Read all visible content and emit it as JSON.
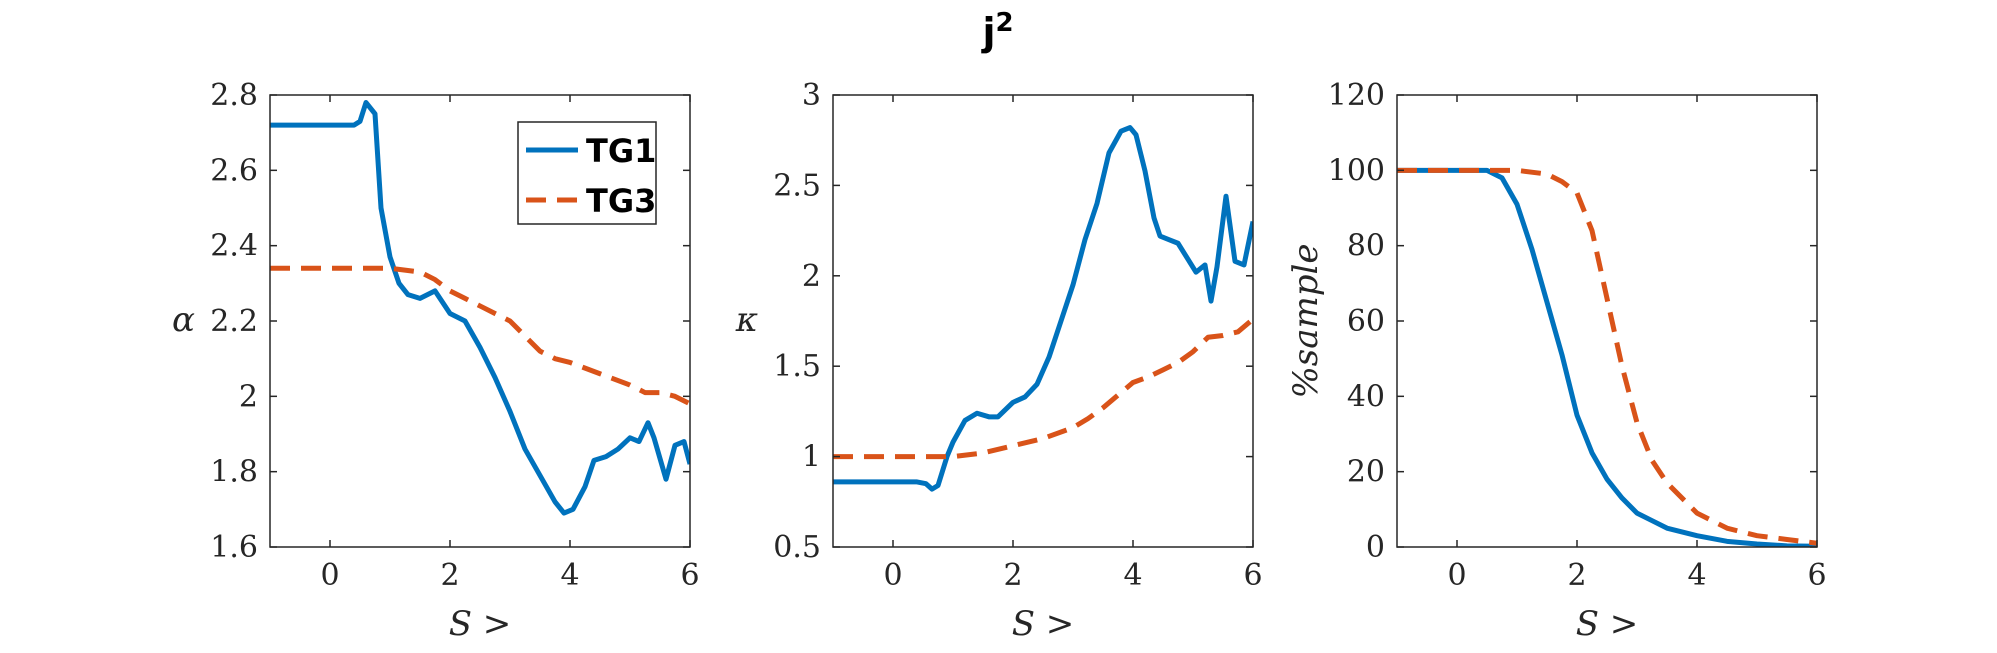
{
  "figure": {
    "title": "j",
    "title_superscript": "2"
  },
  "legend": {
    "entries": [
      "TG1",
      "TG3"
    ],
    "placement": "top-right of first panel"
  },
  "colors": {
    "TG1": "#0072BD",
    "TG3": "#D95319",
    "axes": "#262626"
  },
  "chart_data": [
    {
      "type": "line",
      "xlabel": "S >",
      "ylabel": "α",
      "xlim": [
        -1,
        6
      ],
      "ylim": [
        1.6,
        2.8
      ],
      "xticks": [
        0,
        2,
        4,
        6
      ],
      "yticks": [
        1.6,
        1.8,
        2,
        2.2,
        2.4,
        2.6,
        2.8
      ],
      "ytick_labels": [
        "1.6",
        "1.8",
        "2",
        "2.2",
        "2.4",
        "2.6",
        "2.8"
      ],
      "grid": false,
      "legend": "top-right",
      "series": [
        {
          "name": "TG1",
          "style": "solid",
          "x": [
            -1,
            0,
            0.4,
            0.5,
            0.6,
            0.75,
            0.85,
            1.0,
            1.15,
            1.3,
            1.5,
            1.75,
            2.0,
            2.25,
            2.5,
            2.75,
            3.0,
            3.25,
            3.5,
            3.75,
            3.9,
            4.05,
            4.25,
            4.4,
            4.6,
            4.8,
            5.0,
            5.15,
            5.3,
            5.4,
            5.6,
            5.75,
            5.9,
            6.0
          ],
          "y": [
            2.72,
            2.72,
            2.72,
            2.73,
            2.78,
            2.75,
            2.5,
            2.37,
            2.3,
            2.27,
            2.26,
            2.28,
            2.22,
            2.2,
            2.13,
            2.05,
            1.96,
            1.86,
            1.79,
            1.72,
            1.69,
            1.7,
            1.76,
            1.83,
            1.84,
            1.86,
            1.89,
            1.88,
            1.93,
            1.89,
            1.78,
            1.87,
            1.88,
            1.82
          ]
        },
        {
          "name": "TG3",
          "style": "dashed",
          "x": [
            -1,
            0,
            0.5,
            1.0,
            1.5,
            1.75,
            2.0,
            2.25,
            2.5,
            2.75,
            3.0,
            3.25,
            3.5,
            3.75,
            4.0,
            4.5,
            5.0,
            5.25,
            5.5,
            5.75,
            6.0
          ],
          "y": [
            2.34,
            2.34,
            2.34,
            2.34,
            2.33,
            2.31,
            2.28,
            2.26,
            2.24,
            2.22,
            2.2,
            2.16,
            2.12,
            2.1,
            2.09,
            2.06,
            2.03,
            2.01,
            2.01,
            2.0,
            1.98
          ]
        }
      ]
    },
    {
      "type": "line",
      "xlabel": "S >",
      "ylabel": "κ",
      "xlim": [
        -1,
        6
      ],
      "ylim": [
        0.5,
        3
      ],
      "xticks": [
        0,
        2,
        4,
        6
      ],
      "yticks": [
        0.5,
        1,
        1.5,
        2,
        2.5,
        3
      ],
      "ytick_labels": [
        "0.5",
        "1",
        "1.5",
        "2",
        "2.5",
        "3"
      ],
      "grid": false,
      "series": [
        {
          "name": "TG1",
          "style": "solid",
          "x": [
            -1,
            0,
            0.4,
            0.55,
            0.65,
            0.75,
            0.9,
            1.0,
            1.2,
            1.4,
            1.6,
            1.75,
            2.0,
            2.2,
            2.4,
            2.6,
            2.8,
            3.0,
            3.2,
            3.4,
            3.6,
            3.8,
            3.95,
            4.05,
            4.2,
            4.35,
            4.45,
            4.6,
            4.75,
            4.9,
            5.05,
            5.2,
            5.3,
            5.4,
            5.55,
            5.7,
            5.85,
            6.0
          ],
          "y": [
            0.86,
            0.86,
            0.86,
            0.85,
            0.82,
            0.84,
            1.0,
            1.08,
            1.2,
            1.24,
            1.22,
            1.22,
            1.3,
            1.33,
            1.4,
            1.55,
            1.75,
            1.95,
            2.2,
            2.4,
            2.68,
            2.8,
            2.82,
            2.78,
            2.58,
            2.32,
            2.22,
            2.2,
            2.18,
            2.1,
            2.02,
            2.06,
            1.86,
            2.05,
            2.44,
            2.08,
            2.06,
            2.3
          ]
        },
        {
          "name": "TG3",
          "style": "dashed",
          "x": [
            -1,
            0,
            0.5,
            1.0,
            1.5,
            2.0,
            2.5,
            3.0,
            3.25,
            3.5,
            3.75,
            4.0,
            4.25,
            4.5,
            4.75,
            5.0,
            5.25,
            5.5,
            5.75,
            6.0
          ],
          "y": [
            1.0,
            1.0,
            1.0,
            1.0,
            1.02,
            1.06,
            1.1,
            1.16,
            1.21,
            1.27,
            1.34,
            1.41,
            1.44,
            1.48,
            1.52,
            1.58,
            1.66,
            1.67,
            1.69,
            1.76
          ]
        }
      ]
    },
    {
      "type": "line",
      "xlabel": "S >",
      "ylabel": "%sample",
      "xlim": [
        -1,
        6
      ],
      "ylim": [
        0,
        120
      ],
      "xticks": [
        0,
        2,
        4,
        6
      ],
      "yticks": [
        0,
        20,
        40,
        60,
        80,
        100,
        120
      ],
      "ytick_labels": [
        "0",
        "20",
        "40",
        "60",
        "80",
        "100",
        "120"
      ],
      "grid": false,
      "series": [
        {
          "name": "TG1",
          "style": "solid",
          "x": [
            -1,
            0,
            0.5,
            0.75,
            1.0,
            1.25,
            1.5,
            1.75,
            2.0,
            2.25,
            2.5,
            2.75,
            3.0,
            3.5,
            4.0,
            4.5,
            5.0,
            5.5,
            6.0
          ],
          "y": [
            100,
            100,
            100,
            98,
            91,
            79,
            65,
            51,
            35,
            25,
            18,
            13,
            9,
            5,
            3,
            1.5,
            0.8,
            0.3,
            0.2
          ]
        },
        {
          "name": "TG3",
          "style": "dashed",
          "x": [
            -1,
            0,
            0.5,
            1.0,
            1.5,
            1.75,
            2.0,
            2.25,
            2.5,
            2.75,
            3.0,
            3.25,
            3.5,
            4.0,
            4.5,
            5.0,
            5.5,
            6.0
          ],
          "y": [
            100,
            100,
            100,
            100,
            99,
            97,
            94,
            84,
            66,
            48,
            33,
            23,
            17,
            9,
            5,
            3,
            2,
            1
          ]
        }
      ]
    }
  ]
}
